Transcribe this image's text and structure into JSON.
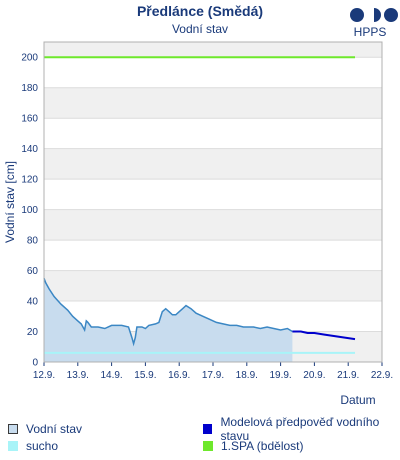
{
  "chart_data": {
    "type": "line",
    "title": "Předlánce (Smědá)",
    "subtitle": "Vodní stav",
    "ylabel": "Vodní stav [cm]",
    "xlabel": "Datum",
    "x_ticks": [
      "12.9.",
      "13.9.",
      "14.9.",
      "15.9.",
      "16.9.",
      "17.9.",
      "18.9.",
      "19.9.",
      "20.9.",
      "21.9.",
      "22.9."
    ],
    "y_ticks": [
      0,
      20,
      40,
      60,
      80,
      100,
      120,
      140,
      160,
      180,
      200
    ],
    "ylim": [
      0,
      210
    ],
    "grid": "alternating horizontal bands",
    "series": [
      {
        "name": "Vodní stav",
        "kind": "observed area",
        "color": "#3b87c4",
        "fill": "#c8dcee",
        "points": [
          [
            0.0,
            55
          ],
          [
            0.05,
            52
          ],
          [
            0.15,
            48
          ],
          [
            0.3,
            43
          ],
          [
            0.5,
            38
          ],
          [
            0.7,
            34
          ],
          [
            0.85,
            30
          ],
          [
            1.0,
            27
          ],
          [
            1.1,
            25
          ],
          [
            1.2,
            21
          ],
          [
            1.25,
            27
          ],
          [
            1.3,
            26
          ],
          [
            1.4,
            23
          ],
          [
            1.6,
            23
          ],
          [
            1.8,
            22
          ],
          [
            2.0,
            24
          ],
          [
            2.3,
            24
          ],
          [
            2.5,
            23
          ],
          [
            2.6,
            16
          ],
          [
            2.65,
            12
          ],
          [
            2.7,
            16
          ],
          [
            2.75,
            23
          ],
          [
            2.9,
            23
          ],
          [
            3.0,
            22
          ],
          [
            3.1,
            24
          ],
          [
            3.3,
            25
          ],
          [
            3.4,
            26
          ],
          [
            3.5,
            33
          ],
          [
            3.6,
            35
          ],
          [
            3.7,
            33
          ],
          [
            3.8,
            31
          ],
          [
            3.9,
            31
          ],
          [
            4.0,
            33
          ],
          [
            4.1,
            35
          ],
          [
            4.2,
            37
          ],
          [
            4.35,
            35
          ],
          [
            4.5,
            32
          ],
          [
            4.7,
            30
          ],
          [
            4.9,
            28
          ],
          [
            5.1,
            26
          ],
          [
            5.3,
            25
          ],
          [
            5.5,
            24
          ],
          [
            5.7,
            24
          ],
          [
            5.9,
            23
          ],
          [
            6.2,
            23
          ],
          [
            6.4,
            22
          ],
          [
            6.6,
            23
          ],
          [
            6.8,
            22
          ],
          [
            7.0,
            21
          ],
          [
            7.2,
            22
          ],
          [
            7.35,
            20
          ]
        ]
      },
      {
        "name": "Modelová předpověď vodního stavu",
        "kind": "forecast line",
        "color": "#0000cc",
        "points": [
          [
            7.35,
            20
          ],
          [
            7.6,
            20
          ],
          [
            7.8,
            19
          ],
          [
            8.0,
            19
          ],
          [
            8.3,
            18
          ],
          [
            8.6,
            17
          ],
          [
            8.9,
            16
          ],
          [
            9.2,
            15
          ]
        ]
      },
      {
        "name": "sucho",
        "kind": "threshold",
        "color": "#a8f4f8",
        "points": [
          [
            0.0,
            6
          ],
          [
            9.2,
            6
          ]
        ]
      },
      {
        "name": "1.SPA (bdělost)",
        "kind": "threshold",
        "color": "#6ee82c",
        "points": [
          [
            0.0,
            200
          ],
          [
            9.2,
            200
          ]
        ]
      }
    ]
  },
  "legend": [
    {
      "label": "Vodní stav",
      "swatch": "#c8dcee",
      "border": "#3a3a3a"
    },
    {
      "label": "Modelová předpověď vodního stavu",
      "swatch": "#0000cc",
      "border": "#0000cc"
    },
    {
      "label": "sucho",
      "swatch": "#a8f4f8",
      "border": "#a8f4f8"
    },
    {
      "label": "1.SPA (bdělost)",
      "swatch": "#6ee82c",
      "border": "#6ee82c"
    }
  ],
  "logo": {
    "text": "HPPS",
    "color": "#1a3a7a"
  }
}
